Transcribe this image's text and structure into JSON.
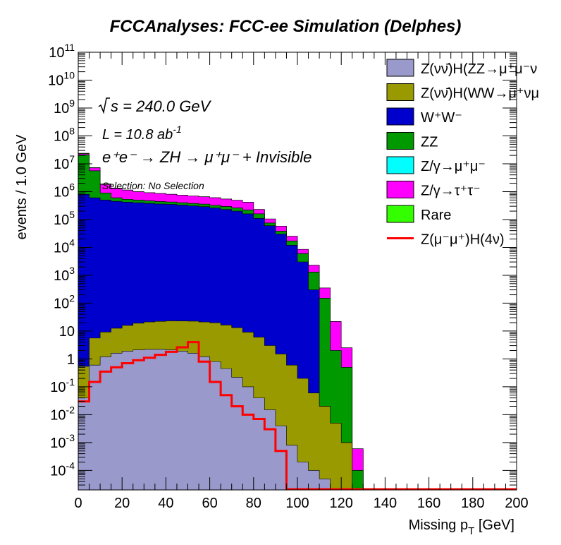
{
  "chart_data": {
    "type": "area",
    "title": "FCCAnalyses: FCC-ee Simulation (Delphes)",
    "xlabel": "Missing p_T [GeV]",
    "xlabel_main": "Missing p",
    "xlabel_sub": "T",
    "xlabel_unit": " [GeV]",
    "ylabel": "events / 1.0 GeV",
    "xlim": [
      0,
      200
    ],
    "ylim": [
      2e-05,
      100000000000
    ],
    "yscale": "log",
    "x_ticks": [
      "0",
      "20",
      "40",
      "60",
      "80",
      "100",
      "120",
      "140",
      "160",
      "180",
      "200"
    ],
    "y_ticks": [
      {
        "b": "10",
        "e": "11"
      },
      {
        "b": "10",
        "e": "10"
      },
      {
        "b": "10",
        "e": "9"
      },
      {
        "b": "10",
        "e": "8"
      },
      {
        "b": "10",
        "e": "7"
      },
      {
        "b": "10",
        "e": "6"
      },
      {
        "b": "10",
        "e": "5"
      },
      {
        "b": "10",
        "e": "4"
      },
      {
        "b": "10",
        "e": "3"
      },
      {
        "b": "10",
        "e": "2"
      },
      {
        "b": "10",
        "e": ""
      },
      {
        "b": "1",
        "e": ""
      },
      {
        "b": "10",
        "e": "-1"
      },
      {
        "b": "10",
        "e": "-2"
      },
      {
        "b": "10",
        "e": "-3"
      },
      {
        "b": "10",
        "e": "-4"
      }
    ],
    "annotations": {
      "sqrts": "s = 240.0 GeV",
      "lumi": "L = 10.8 ab",
      "lumi_exp": "-1",
      "process": "e⁺e⁻ → ZH → μ⁺μ⁻ + Invisible",
      "selection": "Selection: No Selection"
    },
    "legend_position": "top-right",
    "x": [
      0,
      5,
      10,
      15,
      20,
      25,
      30,
      35,
      40,
      45,
      50,
      55,
      60,
      65,
      70,
      75,
      80,
      85,
      90,
      95,
      100,
      105,
      110,
      115,
      120,
      125,
      130
    ],
    "series": [
      {
        "name": "Z(νν̄)H(ZZ→μ⁺μ⁻νν̄)",
        "color": "#9999cc",
        "values": [
          0.04,
          0.6,
          1.2,
          1.6,
          1.9,
          2.1,
          2.2,
          2.2,
          2.1,
          1.9,
          1.6,
          1.2,
          0.8,
          0.45,
          0.22,
          0.1,
          0.04,
          0.015,
          0.004,
          0.0008,
          0.0002,
          0.0001,
          5e-05,
          0,
          0,
          0,
          0
        ]
      },
      {
        "name": "Z(νν̄)H(WW→μ⁺νμ⁻ν̄)",
        "color": "#999900",
        "values": [
          0.5,
          5,
          8,
          11,
          14,
          17,
          19,
          20,
          21,
          21,
          21,
          20,
          19,
          16,
          13,
          9,
          6,
          3,
          1.5,
          0.6,
          0.2,
          0.06,
          0.02,
          0.005,
          0.001,
          0,
          0
        ]
      },
      {
        "name": "W⁺W⁻",
        "color": "#0000cc",
        "values": [
          800000,
          600000,
          500000,
          450000,
          420000,
          400000,
          380000,
          360000,
          350000,
          330000,
          310000,
          290000,
          260000,
          230000,
          200000,
          160000,
          110000,
          60000,
          30000,
          12000,
          3000,
          300,
          0,
          0,
          0,
          0,
          0
        ]
      },
      {
        "name": "ZZ",
        "color": "#009900",
        "values": [
          20000000,
          5000000,
          400000,
          150000,
          110000,
          95000,
          85000,
          80000,
          75000,
          70000,
          68000,
          66000,
          64000,
          62000,
          60000,
          58000,
          50000,
          15000,
          8000,
          5000,
          3000,
          1000,
          150,
          2,
          0.5,
          0.0001,
          0
        ]
      },
      {
        "name": "Z/γ→μ⁺μ⁻",
        "color": "#00ffff",
        "values": [
          0,
          0,
          0,
          0,
          0,
          0,
          0,
          0,
          0,
          0,
          0,
          0,
          0,
          0,
          0,
          0,
          0,
          0,
          0,
          0,
          0,
          0,
          0,
          0,
          0,
          0,
          0
        ]
      },
      {
        "name": "Z/γ→τ⁺τ⁻",
        "color": "#ff00ff",
        "values": [
          2000000,
          1500000,
          900000,
          700000,
          600000,
          500000,
          450000,
          420000,
          380000,
          350000,
          320000,
          300000,
          280000,
          250000,
          230000,
          200000,
          70000,
          30000,
          20000,
          8000,
          2500,
          1000,
          200,
          20,
          2,
          0.0005,
          0
        ]
      },
      {
        "name": "Rare",
        "color": "#33ff00",
        "values": [
          1000000,
          200000,
          100000,
          50000,
          20000,
          8000,
          3000,
          1500,
          800,
          500,
          300,
          200,
          150,
          100,
          80,
          60,
          40,
          20,
          10,
          5,
          2,
          1,
          0.5,
          0.1,
          0.01,
          0,
          0
        ]
      }
    ],
    "signal": {
      "name": "Z(μ⁻μ⁺)H(4ν)",
      "color": "#ff0000",
      "values": [
        0.03,
        0.15,
        0.35,
        0.5,
        0.7,
        0.9,
        1.1,
        1.4,
        1.8,
        2.6,
        4,
        0.8,
        0.15,
        0.05,
        0.02,
        0.01,
        0.007,
        0.003,
        0.0005,
        0,
        0,
        0,
        0,
        0,
        0,
        0,
        0
      ]
    },
    "legend": [
      {
        "label": "Z(νν̄)H(ZZ→μ⁺μ⁻ν",
        "kind": "box",
        "color": "#9999cc"
      },
      {
        "label": "Z(νν̄)H(WW→μ⁺νμ",
        "kind": "box",
        "color": "#999900"
      },
      {
        "label": "W⁺W⁻",
        "kind": "box",
        "color": "#0000cc"
      },
      {
        "label": "ZZ",
        "kind": "box",
        "color": "#009900"
      },
      {
        "label": "Z/γ→μ⁺μ⁻",
        "kind": "box",
        "color": "#00ffff"
      },
      {
        "label": "Z/γ→τ⁺τ⁻",
        "kind": "box",
        "color": "#ff00ff"
      },
      {
        "label": "Rare",
        "kind": "box",
        "color": "#33ff00"
      },
      {
        "label": "Z(μ⁻μ⁺)H(4ν)",
        "kind": "line",
        "color": "#ff0000"
      }
    ]
  }
}
